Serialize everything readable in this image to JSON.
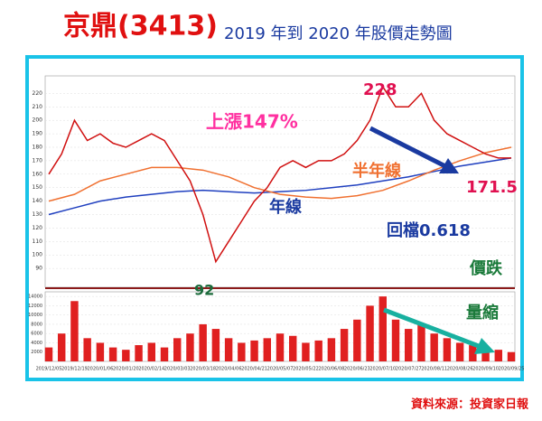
{
  "chart_data": {
    "type": "line",
    "title": "京鼎(3413)",
    "subtitle": "2019 年到 2020 年股價走勢圖",
    "source": "資料來源：投資家日報",
    "categories": [
      "2019/12/05",
      "2019/12/19",
      "2020/01/06",
      "2020/01/20",
      "2020/02/14",
      "2020/03/03",
      "2020/03/18",
      "2020/04/06",
      "2020/04/21",
      "2020/05/07",
      "2020/05/22",
      "2020/06/08",
      "2020/06/23",
      "2020/07/10",
      "2020/07/27",
      "2020/08/11",
      "2020/08/26",
      "2020/09/10",
      "2020/09/25"
    ],
    "price": {
      "color": "#d01010",
      "values": [
        160,
        175,
        200,
        185,
        190,
        183,
        180,
        185,
        190,
        185,
        170,
        155,
        130,
        95,
        110,
        125,
        140,
        150,
        165,
        170,
        165,
        170,
        170,
        175,
        185,
        200,
        225,
        210,
        210,
        220,
        200,
        190,
        185,
        180,
        175,
        172,
        172
      ]
    },
    "series": [
      {
        "name": "年線",
        "color": "#1f3fbf",
        "values": [
          130,
          135,
          140,
          143,
          145,
          147,
          148,
          147,
          146,
          147,
          148,
          150,
          152,
          155,
          158,
          162,
          166,
          169,
          172
        ]
      },
      {
        "name": "半年線",
        "color": "#f07030",
        "values": [
          140,
          145,
          155,
          160,
          165,
          165,
          163,
          158,
          150,
          145,
          143,
          142,
          144,
          148,
          155,
          163,
          170,
          176,
          180
        ]
      }
    ],
    "ylim": [
      76,
      233
    ],
    "yticks": [
      90,
      100,
      110,
      120,
      130,
      140,
      150,
      160,
      170,
      180,
      190,
      200,
      210,
      220
    ],
    "volume": {
      "color": "#e02020",
      "values": [
        3000,
        6000,
        13000,
        5000,
        4000,
        3000,
        2500,
        3500,
        4000,
        3000,
        5000,
        6000,
        8000,
        7000,
        5000,
        4000,
        4500,
        5000,
        6000,
        5500,
        4000,
        4500,
        5000,
        7000,
        9000,
        12000,
        14000,
        9000,
        7000,
        8000,
        6000,
        5000,
        4000,
        3500,
        3000,
        2500,
        2000
      ]
    },
    "vlim": [
      0,
      15000
    ],
    "vticks": [
      2000,
      4000,
      6000,
      8000,
      10000,
      12000,
      14000
    ],
    "annotations": [
      "228",
      "92",
      "171.5",
      "上漲147%",
      "回檔0.618",
      "價跌",
      "量縮"
    ]
  }
}
